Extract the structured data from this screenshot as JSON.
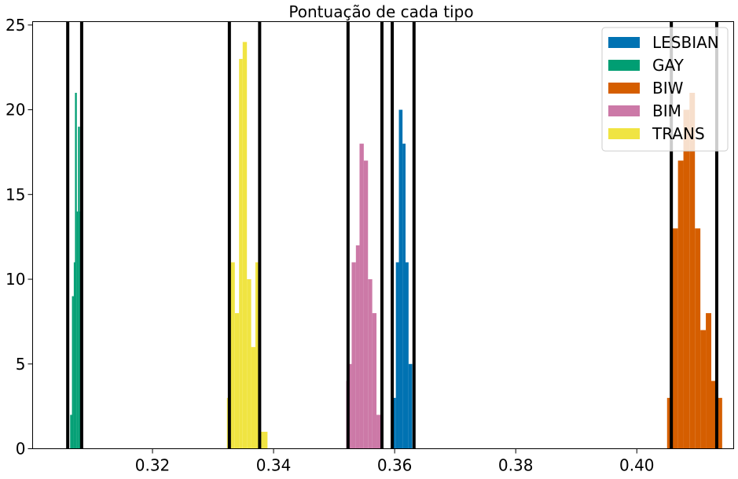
{
  "chart_data": {
    "type": "bar",
    "title": "Pontuação de cada tipo",
    "xlabel": "",
    "ylabel": "",
    "xlim": [
      0.3002,
      0.416
    ],
    "ylim": [
      0,
      25.2
    ],
    "x_ticks": [
      0.32,
      0.34,
      0.36,
      0.38,
      0.4
    ],
    "x_tick_labels": [
      "0.32",
      "0.34",
      "0.36",
      "0.38",
      "0.40"
    ],
    "y_ticks": [
      0,
      5,
      10,
      15,
      20,
      25
    ],
    "y_tick_labels": [
      "0",
      "5",
      "10",
      "15",
      "20",
      "25"
    ],
    "grid": false,
    "legend_position": "top-right",
    "series": [
      {
        "name": "LESBIAN",
        "color": "#0072B2",
        "bins": [
          [
            0.3596,
            0.3602,
            3
          ],
          [
            0.3602,
            0.3607,
            11
          ],
          [
            0.3607,
            0.3613,
            20
          ],
          [
            0.3613,
            0.3618,
            18
          ],
          [
            0.3618,
            0.3623,
            11
          ],
          [
            0.3623,
            0.3629,
            5
          ]
        ]
      },
      {
        "name": "GAY",
        "color": "#009E73",
        "bins": [
          [
            0.3064,
            0.3067,
            2
          ],
          [
            0.3067,
            0.307,
            9
          ],
          [
            0.307,
            0.3072,
            11
          ],
          [
            0.3072,
            0.3075,
            21
          ],
          [
            0.3075,
            0.3077,
            14
          ],
          [
            0.3077,
            0.308,
            19
          ],
          [
            0.308,
            0.3082,
            14
          ]
        ]
      },
      {
        "name": "BIW",
        "color": "#D55E00",
        "bins": [
          [
            0.405,
            0.4059,
            3
          ],
          [
            0.4059,
            0.4068,
            13
          ],
          [
            0.4068,
            0.4077,
            17
          ],
          [
            0.4077,
            0.4087,
            20
          ],
          [
            0.4087,
            0.4096,
            21
          ],
          [
            0.4096,
            0.4105,
            13
          ],
          [
            0.4105,
            0.4114,
            7
          ],
          [
            0.4114,
            0.4123,
            8
          ],
          [
            0.4123,
            0.4132,
            4
          ],
          [
            0.4132,
            0.4141,
            3
          ]
        ]
      },
      {
        "name": "BIM",
        "color": "#CC79A7",
        "bins": [
          [
            0.3522,
            0.3529,
            5
          ],
          [
            0.3529,
            0.3536,
            11
          ],
          [
            0.3536,
            0.3542,
            12
          ],
          [
            0.3542,
            0.3549,
            18
          ],
          [
            0.3549,
            0.3556,
            17
          ],
          [
            0.3556,
            0.3563,
            10
          ],
          [
            0.3563,
            0.357,
            8
          ],
          [
            0.357,
            0.3577,
            2
          ]
        ]
      },
      {
        "name": "TRANS",
        "color": "#F0E442",
        "bins": [
          [
            0.3323,
            0.3329,
            3
          ],
          [
            0.3329,
            0.3336,
            11
          ],
          [
            0.3336,
            0.3343,
            8
          ],
          [
            0.3343,
            0.3349,
            23
          ],
          [
            0.3349,
            0.3356,
            24
          ],
          [
            0.3356,
            0.3363,
            10
          ],
          [
            0.3363,
            0.337,
            6
          ],
          [
            0.337,
            0.3376,
            11
          ],
          [
            0.3376,
            0.3383,
            1
          ],
          [
            0.3383,
            0.339,
            1
          ]
        ]
      }
    ],
    "extra_bars": [
      {
        "color": "#CC79A7",
        "x0": 0.352,
        "x1": 0.3523,
        "value": 4
      },
      {
        "color": "#0072B2",
        "x0": 0.3593,
        "x1": 0.3596,
        "value": 0
      }
    ],
    "vlines": [
      0.306,
      0.3083,
      0.3327,
      0.3377,
      0.3523,
      0.3579,
      0.3596,
      0.3632,
      0.4057,
      0.4132
    ],
    "vline_color": "#000000"
  }
}
